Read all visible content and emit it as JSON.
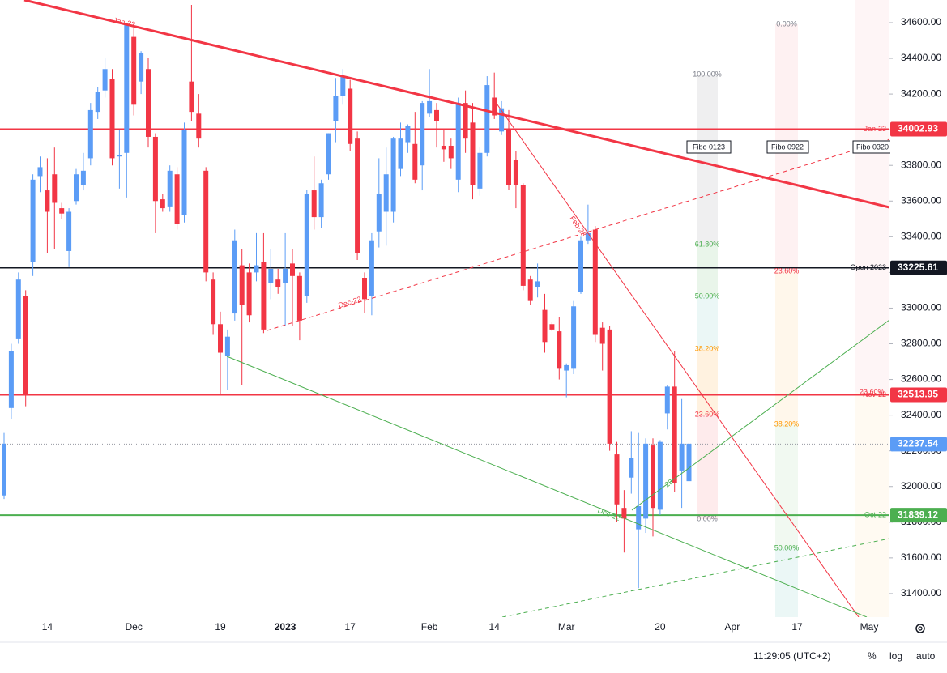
{
  "chart_data": {
    "type": "candlestick",
    "ylim": [
      31268,
      34727
    ],
    "yticks": [
      {
        "value": 34600,
        "label": "34600.00"
      },
      {
        "value": 34400,
        "label": "34400.00"
      },
      {
        "value": 34200,
        "label": "34200.00"
      },
      {
        "value": 34000,
        "label": "34000.00"
      },
      {
        "value": 33800,
        "label": "33800.00"
      },
      {
        "value": 33600,
        "label": "33600.00"
      },
      {
        "value": 33400,
        "label": "33400.00"
      },
      {
        "value": 33200,
        "label": "33200.00"
      },
      {
        "value": 33000,
        "label": "33000.00"
      },
      {
        "value": 32800,
        "label": "32800.00"
      },
      {
        "value": 32600,
        "label": "32600.00"
      },
      {
        "value": 32400,
        "label": "32400.00"
      },
      {
        "value": 32200,
        "label": "32200.00"
      },
      {
        "value": 32000,
        "label": "32000.00"
      },
      {
        "value": 31800,
        "label": "31800.00"
      },
      {
        "value": 31600,
        "label": "31600.00"
      },
      {
        "value": 31400,
        "label": "31400.00"
      }
    ],
    "categories": [
      null,
      null,
      null,
      null,
      null,
      null,
      "14",
      null,
      null,
      null,
      null,
      null,
      null,
      null,
      null,
      null,
      null,
      null,
      "Dec",
      null,
      null,
      null,
      null,
      null,
      null,
      null,
      null,
      null,
      null,
      null,
      "19",
      null,
      null,
      null,
      null,
      null,
      null,
      null,
      null,
      "2023",
      null,
      null,
      null,
      null,
      null,
      null,
      null,
      null,
      "17",
      null,
      null,
      null,
      null,
      null,
      null,
      null,
      null,
      null,
      null,
      "Feb",
      null,
      null,
      null,
      null,
      null,
      null,
      null,
      null,
      "14",
      null,
      null,
      null,
      null,
      null,
      null,
      null,
      null,
      null,
      "Mar",
      null,
      null,
      null,
      null,
      null,
      null,
      null,
      null,
      null,
      null,
      null,
      null,
      "20",
      null,
      null,
      null,
      null,
      null,
      null,
      null,
      null,
      null,
      "Apr",
      null,
      null,
      null,
      null,
      null,
      null,
      null,
      null,
      "17",
      null,
      null,
      null,
      null,
      null,
      null,
      null,
      null,
      null,
      "May",
      null,
      null
    ],
    "up_color": "#5b9cf6",
    "down_color": "#f23645",
    "series": [
      {
        "open": [
          31950,
          32440,
          32830,
          33070,
          33260,
          33740,
          33660,
          33750,
          33560,
          33320,
          33600,
          33690,
          33840,
          34100,
          34220,
          34285,
          33850,
          33870,
          34520,
          34270,
          34340,
          33960,
          33610,
          33570,
          33750,
          33520,
          34270,
          34090,
          33770,
          33160,
          32910,
          32730,
          32970,
          33240,
          33200,
          33200,
          33260,
          33140,
          33160,
          33140,
          33250,
          33180,
          33070,
          33660,
          33510,
          33750,
          34050,
          34190,
          34230,
          33950,
          33170,
          33070,
          33430,
          33540,
          33540,
          33780,
          33930,
          33920,
          33800,
          34090,
          34110,
          33910,
          33910,
          33720,
          34150,
          34040,
          33670,
          33870,
          34180,
          33990,
          34000,
          33830,
          33690,
          33160,
          33120,
          32990,
          32910,
          32870,
          32650,
          32660,
          33090,
          33380,
          33440,
          32890,
          32880,
          32180,
          31880,
          32050,
          31760,
          31820,
          32230,
          31870,
          32410,
          32560,
          32090,
          32030,
          null,
          null,
          null,
          null,
          null,
          null,
          null,
          null,
          null,
          null,
          null,
          null,
          null,
          null,
          null,
          null,
          null,
          null,
          null,
          null,
          null,
          null,
          null,
          null,
          null,
          null,
          null
        ],
        "high": [
          32300,
          32800,
          33200,
          33100,
          33750,
          33850,
          33840,
          33900,
          33590,
          33560,
          33780,
          33870,
          34150,
          34240,
          34400,
          34340,
          34000,
          34600,
          34600,
          34440,
          34400,
          33980,
          33640,
          33800,
          33790,
          34040,
          34700,
          34200,
          33790,
          33200,
          32980,
          32880,
          33440,
          33330,
          33250,
          33420,
          33420,
          33330,
          33220,
          33420,
          33330,
          33200,
          33660,
          33850,
          33720,
          33980,
          34290,
          34340,
          34280,
          33990,
          33200,
          33420,
          33840,
          33900,
          33960,
          34040,
          34030,
          34100,
          34160,
          34340,
          34150,
          34000,
          33950,
          34180,
          34220,
          34150,
          33900,
          34300,
          34320,
          34160,
          34110,
          33880,
          33700,
          33180,
          33250,
          33080,
          32920,
          32950,
          32690,
          33040,
          33400,
          33580,
          33460,
          32920,
          32900,
          32250,
          31980,
          32310,
          32300,
          32270,
          32270,
          32260,
          32570,
          32760,
          32490,
          32260,
          null,
          null,
          null,
          null,
          null,
          null,
          null,
          null,
          null,
          null,
          null,
          null,
          null,
          null,
          null,
          null,
          null,
          null,
          null,
          null,
          null,
          null,
          null,
          null,
          null,
          null,
          null
        ],
        "low": [
          31930,
          32380,
          32800,
          32450,
          33180,
          33650,
          33310,
          33330,
          33500,
          33230,
          33580,
          33660,
          33800,
          34060,
          34180,
          33800,
          33670,
          33620,
          34080,
          34200,
          33900,
          33420,
          33540,
          33540,
          33440,
          33480,
          34050,
          33900,
          33150,
          32850,
          32520,
          32540,
          32930,
          32570,
          32920,
          33150,
          32860,
          33050,
          33080,
          32900,
          32900,
          32820,
          33030,
          33440,
          33450,
          33720,
          33930,
          34140,
          33880,
          33270,
          32970,
          32960,
          33340,
          33350,
          33480,
          33740,
          33870,
          33700,
          33660,
          34070,
          33900,
          33820,
          33780,
          33650,
          33870,
          33610,
          33630,
          33850,
          34060,
          33970,
          33660,
          33560,
          33100,
          33020,
          33060,
          32750,
          32870,
          32600,
          32500,
          32630,
          33080,
          33360,
          32810,
          32650,
          32200,
          31800,
          31630,
          31960,
          31430,
          31740,
          31720,
          31840,
          32320,
          31970,
          31880,
          31830,
          null,
          null,
          null,
          null,
          null,
          null,
          null,
          null,
          null,
          null,
          null,
          null,
          null,
          null,
          null,
          null,
          null,
          null,
          null,
          null,
          null,
          null,
          null,
          null,
          null,
          null,
          null
        ],
        "close": [
          32240,
          32760,
          33160,
          32510,
          33720,
          33790,
          33540,
          33590,
          33530,
          33540,
          33750,
          33770,
          34110,
          34210,
          34340,
          33840,
          33860,
          34590,
          34140,
          34430,
          33960,
          33600,
          33560,
          33770,
          33470,
          34000,
          34100,
          33950,
          33200,
          32910,
          32750,
          32840,
          33380,
          33020,
          32960,
          33240,
          32880,
          33220,
          33120,
          33220,
          33180,
          32930,
          33640,
          33510,
          33700,
          33980,
          34190,
          34300,
          33920,
          33310,
          33050,
          33380,
          33640,
          33750,
          33950,
          33950,
          34020,
          33720,
          34150,
          34160,
          34050,
          33890,
          33840,
          34150,
          33950,
          33690,
          33870,
          34250,
          34080,
          34120,
          33690,
          33690,
          33125,
          33040,
          33150,
          32810,
          32880,
          32660,
          32680,
          33010,
          33380,
          33420,
          32850,
          32800,
          32240,
          31900,
          31820,
          32160,
          31890,
          32240,
          31880,
          32250,
          32560,
          32020,
          32240,
          32240,
          null,
          null,
          null,
          null,
          null,
          null,
          null,
          null,
          null,
          null,
          null,
          null,
          null,
          null,
          null,
          null,
          null,
          null,
          null,
          null,
          null,
          null,
          null,
          null,
          null,
          null,
          null
        ]
      }
    ],
    "levels": [
      {
        "value": 34002.93,
        "label": "Jan-23",
        "color": "#f23645"
      },
      {
        "value": 33225.61,
        "label": "Open 2023",
        "color": "#131722"
      },
      {
        "value": 32513.95,
        "label": "Nov-22",
        "color": "#f23645"
      },
      {
        "value": 31839.12,
        "label": "Oct-22",
        "color": "#4caf50"
      }
    ],
    "last_price": {
      "value": 32237.54,
      "color": "#5b9cf6"
    },
    "annotations": {
      "trend": [
        "Jan-22",
        "Feb-23",
        "Dec-22",
        "Dec-22",
        "23"
      ],
      "fibo": [
        {
          "name": "Fibo 0123",
          "levels": [
            "100.00%",
            "61.80%",
            "50.00%",
            "38.20%",
            "23.60%",
            "0.00%"
          ]
        },
        {
          "name": "Fibo 0922",
          "levels": [
            "0.00%",
            "23.60%",
            "38.20%",
            "50.00%"
          ]
        },
        {
          "name": "Fibo 0320",
          "levels": [
            "23.60%"
          ]
        }
      ]
    },
    "footer": {
      "time": "11:29:05 (UTC+2)",
      "percent": "%",
      "log": "log",
      "auto": "auto"
    }
  }
}
